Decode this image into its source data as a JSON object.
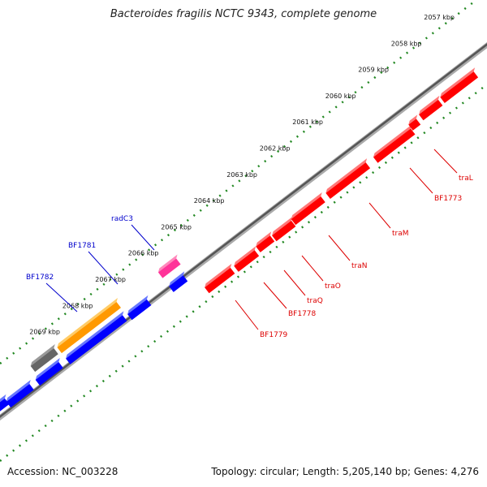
{
  "title": "Bacteroides fragilis NCTC 9343, complete genome",
  "footer": {
    "accession": "Accession: NC_003228",
    "stats": "Topology: circular; Length: 5,205,140 bp; Genes: 4,276"
  },
  "ticks": [
    {
      "label": "2057 kbp",
      "kbp": 2057
    },
    {
      "label": "2058 kbp",
      "kbp": 2058
    },
    {
      "label": "2059 kbp",
      "kbp": 2059
    },
    {
      "label": "2060 kbp",
      "kbp": 2060
    },
    {
      "label": "2061 kbp",
      "kbp": 2061
    },
    {
      "label": "2062 kbp",
      "kbp": 2062
    },
    {
      "label": "2063 kbp",
      "kbp": 2063
    },
    {
      "label": "2064 kbp",
      "kbp": 2064
    },
    {
      "label": "2065 kbp",
      "kbp": 2065
    },
    {
      "label": "2066 kbp",
      "kbp": 2066
    },
    {
      "label": "2067 kbp",
      "kbp": 2067
    },
    {
      "label": "2068 kbp",
      "kbp": 2068
    },
    {
      "label": "2069 kbp",
      "kbp": 2069
    }
  ],
  "gene_labels_outer": [
    {
      "label": "radC3",
      "color": "#0000cc"
    },
    {
      "label": "BF1781",
      "color": "#0000cc"
    },
    {
      "label": "BF1782",
      "color": "#0000cc"
    }
  ],
  "gene_labels_inner": [
    {
      "label": "traL",
      "color": "#dd0000"
    },
    {
      "label": "BF1773",
      "color": "#dd0000"
    },
    {
      "label": "traM",
      "color": "#dd0000"
    },
    {
      "label": "traN",
      "color": "#dd0000"
    },
    {
      "label": "traO",
      "color": "#dd0000"
    },
    {
      "label": "traQ",
      "color": "#dd0000"
    },
    {
      "label": "BF1778",
      "color": "#dd0000"
    },
    {
      "label": "BF1779",
      "color": "#dd0000"
    }
  ],
  "colors": {
    "reverse_strand": "#ff0000",
    "forward_strand": "#0000ff",
    "orange_gene": "#ff9900",
    "pink_gene": "#ff3399",
    "gray_gene": "#666666",
    "tick_marks": "#228822"
  }
}
